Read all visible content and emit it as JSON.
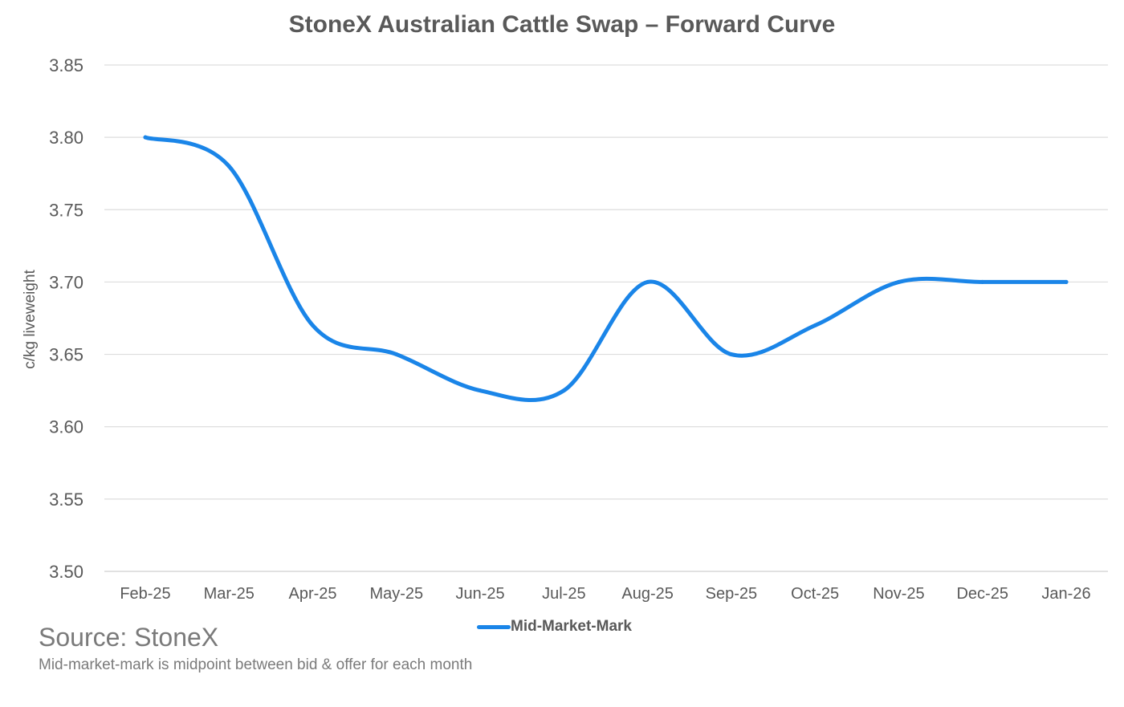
{
  "chart_data": {
    "type": "line",
    "title": "StoneX Australian Cattle Swap – Forward Curve",
    "xlabel": "",
    "ylabel": "c/kg liveweight",
    "categories": [
      "Feb-25",
      "Mar-25",
      "Apr-25",
      "May-25",
      "Jun-25",
      "Jul-25",
      "Aug-25",
      "Sep-25",
      "Oct-25",
      "Nov-25",
      "Dec-25",
      "Jan-26"
    ],
    "series": [
      {
        "name": "Mid-Market-Mark",
        "color": "#1a85e8",
        "values": [
          3.8,
          3.78,
          3.67,
          3.65,
          3.625,
          3.625,
          3.7,
          3.65,
          3.67,
          3.7,
          3.7,
          3.7
        ]
      }
    ],
    "ylim": [
      3.5,
      3.85
    ],
    "yticks": [
      "3.50",
      "3.55",
      "3.60",
      "3.65",
      "3.70",
      "3.75",
      "3.80",
      "3.85"
    ],
    "ytick_values": [
      3.5,
      3.55,
      3.6,
      3.65,
      3.7,
      3.75,
      3.8,
      3.85
    ],
    "grid": true,
    "smooth": true,
    "legend_position": "bottom"
  },
  "footer": {
    "source": "Source: StoneX",
    "note": "Mid-market-mark is midpoint between bid & offer for each month"
  }
}
